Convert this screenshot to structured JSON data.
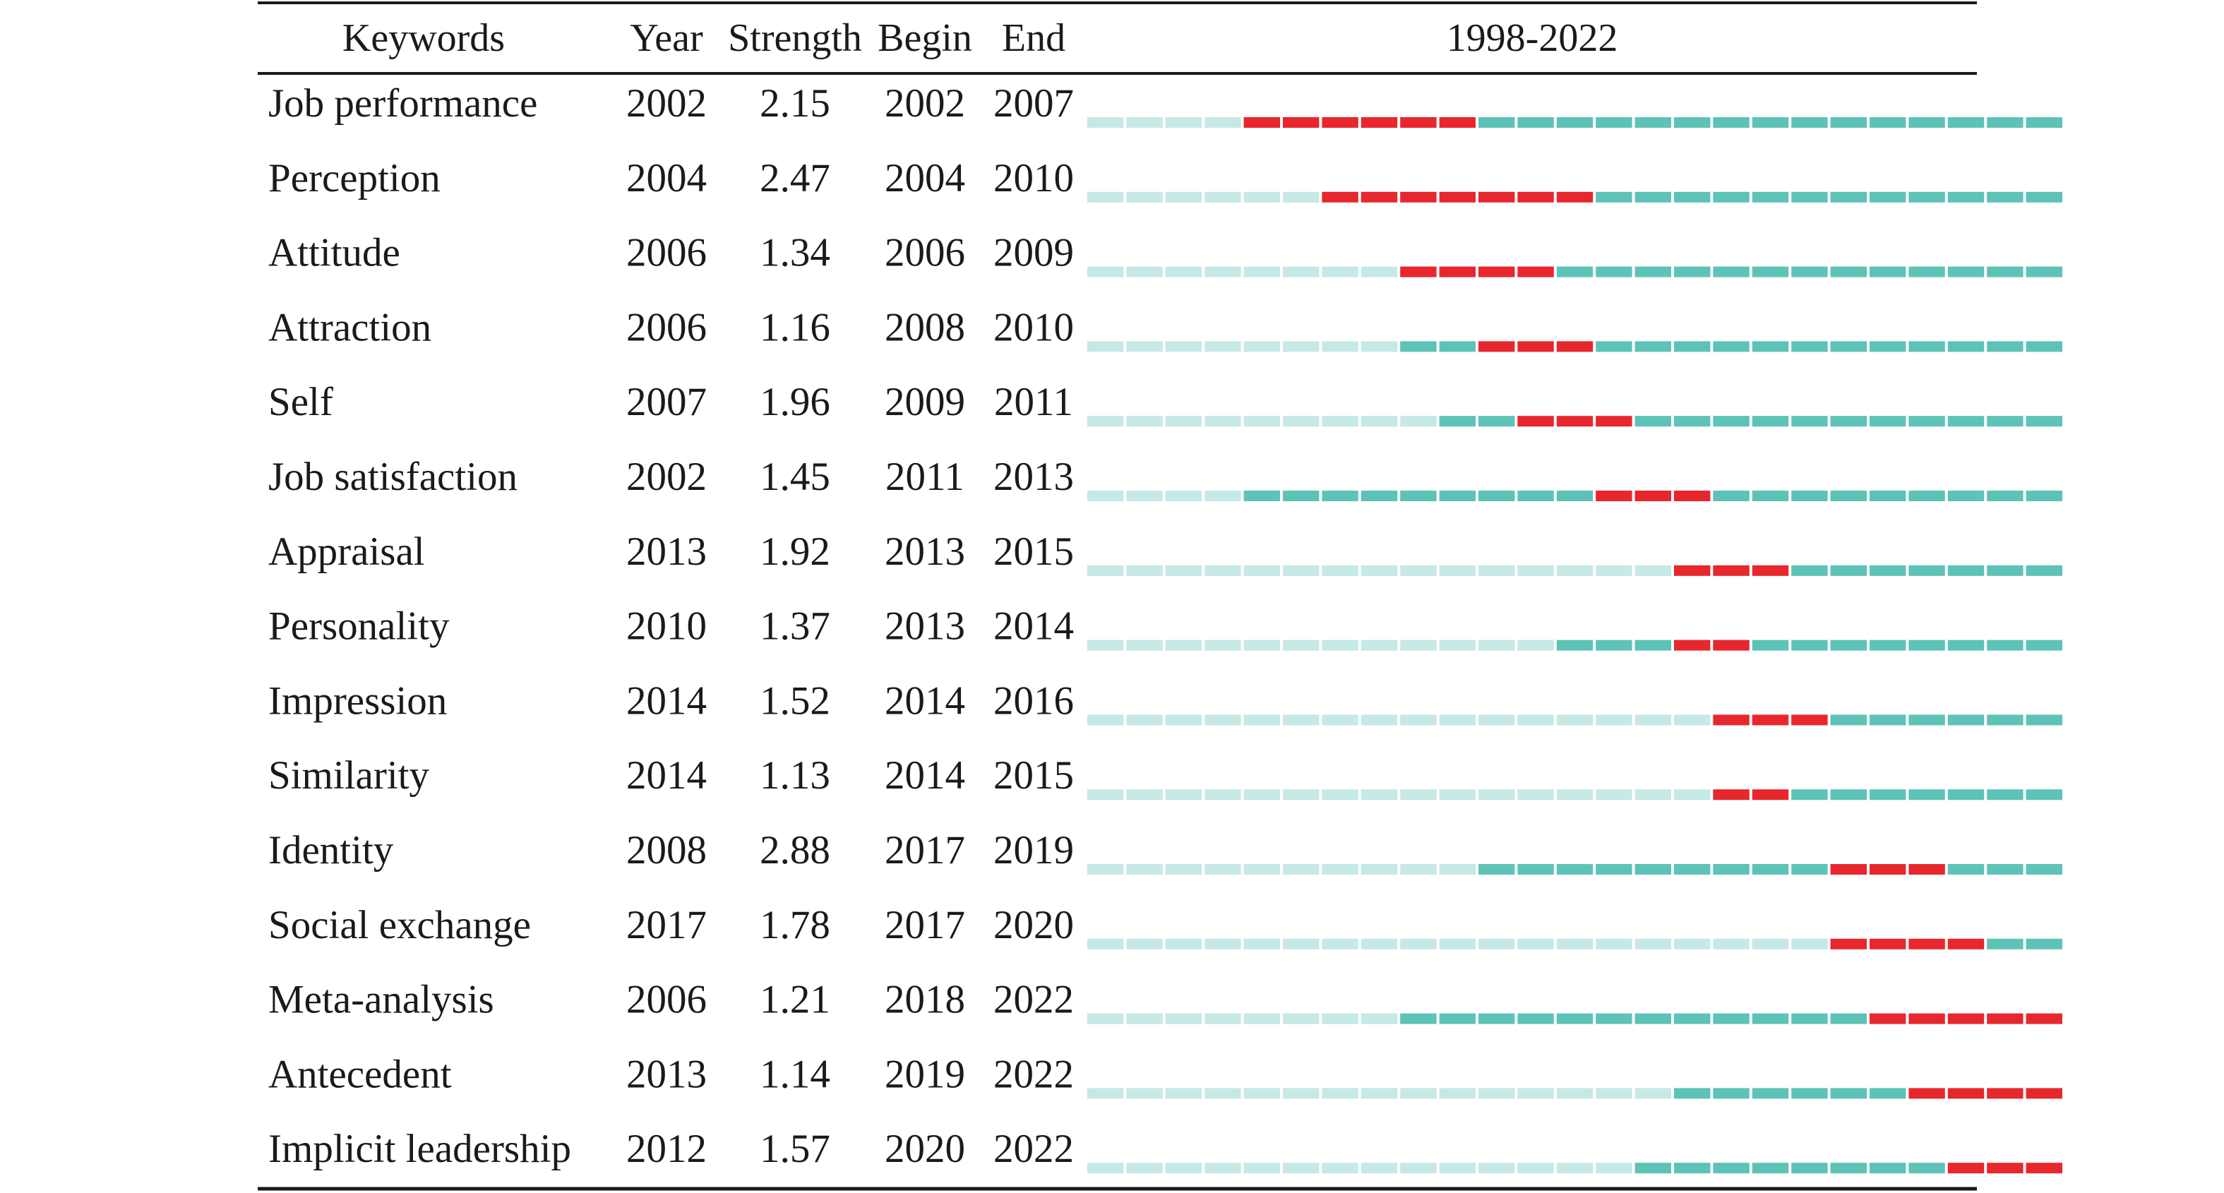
{
  "chart_data": {
    "type": "table",
    "header": {
      "keywords": "Keywords",
      "year": "Year",
      "strength": "Strength",
      "begin": "Begin",
      "end": "End",
      "timeline": "1998-2022"
    },
    "timeline_start": 1998,
    "timeline_end": 2022,
    "rows": [
      {
        "keyword": "Job performance",
        "year": "2002",
        "strength": "2.15",
        "begin": "2002",
        "end": "2007"
      },
      {
        "keyword": "Perception",
        "year": "2004",
        "strength": "2.47",
        "begin": "2004",
        "end": "2010"
      },
      {
        "keyword": "Attitude",
        "year": "2006",
        "strength": "1.34",
        "begin": "2006",
        "end": "2009"
      },
      {
        "keyword": "Attraction",
        "year": "2006",
        "strength": "1.16",
        "begin": "2008",
        "end": "2010"
      },
      {
        "keyword": "Self",
        "year": "2007",
        "strength": "1.96",
        "begin": "2009",
        "end": "2011"
      },
      {
        "keyword": "Job satisfaction",
        "year": "2002",
        "strength": "1.45",
        "begin": "2011",
        "end": "2013"
      },
      {
        "keyword": "Appraisal",
        "year": "2013",
        "strength": "1.92",
        "begin": "2013",
        "end": "2015"
      },
      {
        "keyword": "Personality",
        "year": "2010",
        "strength": "1.37",
        "begin": "2013",
        "end": "2014"
      },
      {
        "keyword": "Impression",
        "year": "2014",
        "strength": "1.52",
        "begin": "2014",
        "end": "2016"
      },
      {
        "keyword": "Similarity",
        "year": "2014",
        "strength": "1.13",
        "begin": "2014",
        "end": "2015"
      },
      {
        "keyword": "Identity",
        "year": "2008",
        "strength": "2.88",
        "begin": "2017",
        "end": "2019"
      },
      {
        "keyword": "Social exchange",
        "year": "2017",
        "strength": "1.78",
        "begin": "2017",
        "end": "2020"
      },
      {
        "keyword": "Meta-analysis",
        "year": "2006",
        "strength": "1.21",
        "begin": "2018",
        "end": "2022"
      },
      {
        "keyword": "Antecedent",
        "year": "2013",
        "strength": "1.14",
        "begin": "2019",
        "end": "2022"
      },
      {
        "keyword": "Implicit leadership",
        "year": "2012",
        "strength": "1.57",
        "begin": "2020",
        "end": "2022"
      }
    ],
    "colors": {
      "inactive": "#c5e9e4",
      "active": "#5dc3b6",
      "burst": "#e8262d",
      "rule": "#1a1a1a"
    }
  }
}
